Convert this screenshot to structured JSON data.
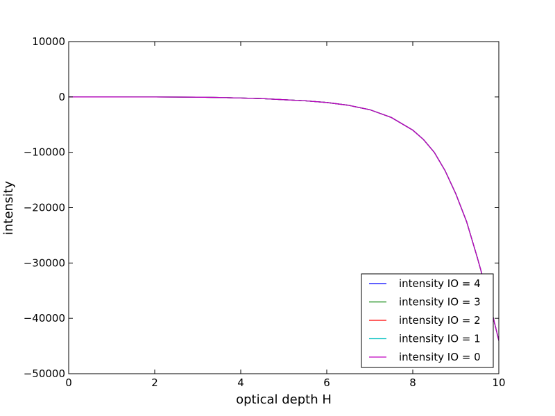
{
  "chart_data": {
    "type": "line",
    "title": "",
    "xlabel": "optical depth H",
    "ylabel": "intensity",
    "xlim": [
      0,
      10
    ],
    "ylim": [
      -50000,
      10000
    ],
    "xticks": [
      0,
      2,
      4,
      6,
      8,
      10
    ],
    "xtick_labels": [
      "0",
      "2",
      "4",
      "6",
      "8",
      "10"
    ],
    "yticks": [
      10000,
      0,
      -10000,
      -20000,
      -30000,
      -40000,
      -50000
    ],
    "ytick_labels": [
      "10000",
      "0",
      "−10000",
      "−20000",
      "−30000",
      "−40000",
      "−50000"
    ],
    "grid": false,
    "legend_position": "lower-right",
    "x": [
      0,
      0.5,
      1,
      1.5,
      2,
      2.5,
      3,
      3.5,
      4,
      4.5,
      5,
      5.5,
      6,
      6.5,
      7,
      7.5,
      8,
      8.25,
      8.5,
      8.75,
      9,
      9.25,
      9.5,
      9.75,
      10
    ],
    "series": [
      {
        "name": "intensity IO = 4",
        "color": "#0000ff",
        "values": [
          0,
          -1,
          -2,
          -5,
          -10,
          -20,
          -50,
          -100,
          -200,
          -300,
          -500,
          -700,
          -1000,
          -1500,
          -2300,
          -3700,
          -6000,
          -7700,
          -10000,
          -13300,
          -17500,
          -22500,
          -29000,
          -36000,
          -44000
        ]
      },
      {
        "name": "intensity IO = 3",
        "color": "#008000",
        "values": [
          0,
          -1,
          -2,
          -5,
          -10,
          -20,
          -50,
          -100,
          -200,
          -300,
          -500,
          -700,
          -1000,
          -1500,
          -2300,
          -3700,
          -6000,
          -7700,
          -10000,
          -13300,
          -17500,
          -22500,
          -29000,
          -36000,
          -44000
        ]
      },
      {
        "name": "intensity IO = 2",
        "color": "#ff0000",
        "values": [
          0,
          -1,
          -2,
          -5,
          -10,
          -20,
          -50,
          -100,
          -200,
          -300,
          -500,
          -700,
          -1000,
          -1500,
          -2300,
          -3700,
          -6000,
          -7700,
          -10000,
          -13300,
          -17500,
          -22500,
          -29000,
          -36000,
          -44000
        ]
      },
      {
        "name": "intensity IO = 1",
        "color": "#00bfbf",
        "values": [
          0,
          -1,
          -2,
          -5,
          -10,
          -20,
          -50,
          -100,
          -200,
          -300,
          -500,
          -700,
          -1000,
          -1500,
          -2300,
          -3700,
          -6000,
          -7700,
          -10000,
          -13300,
          -17500,
          -22500,
          -29000,
          -36000,
          -44000
        ]
      },
      {
        "name": "intensity IO = 0",
        "color": "#bf00bf",
        "values": [
          0,
          -1,
          -2,
          -5,
          -10,
          -20,
          -50,
          -100,
          -200,
          -300,
          -500,
          -700,
          -1000,
          -1500,
          -2300,
          -3700,
          -6000,
          -7700,
          -10000,
          -13300,
          -17500,
          -22500,
          -29000,
          -36000,
          -44000
        ]
      }
    ]
  }
}
